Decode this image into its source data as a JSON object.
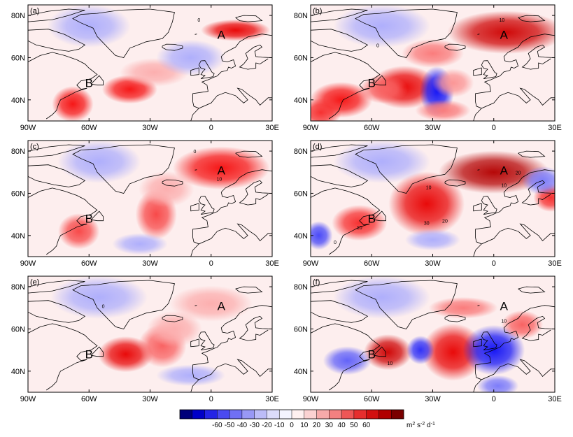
{
  "chart_data": [
    {
      "panel": "(a)",
      "type": "heatmap",
      "xticks": [
        "90W",
        "60W",
        "30W",
        "0",
        "30E"
      ],
      "yticks": [
        "80N",
        "60N",
        "40N"
      ],
      "lon_range": [
        -90,
        30
      ],
      "lat_range": [
        30,
        85
      ],
      "regions": [
        {
          "label": "A",
          "lon": 5,
          "lat": 69
        },
        {
          "label": "B",
          "lon": -60,
          "lat": 46
        }
      ],
      "contour_labels": [
        {
          "text": "0",
          "lon": -6,
          "lat": 77
        }
      ],
      "anomalies": [
        {
          "lon": -68,
          "lat": 38,
          "value": 40,
          "rlon": 6,
          "rlat": 5
        },
        {
          "lon": -40,
          "lat": 45,
          "value": 40,
          "rlon": 8,
          "rlat": 4
        },
        {
          "lon": 12,
          "lat": 73,
          "value": 45,
          "rlon": 10,
          "rlat": 3
        },
        {
          "lon": -28,
          "lat": 53,
          "value": 10,
          "rlon": 10,
          "rlat": 4
        },
        {
          "lon": -60,
          "lat": 75,
          "value": -10,
          "rlon": 12,
          "rlat": 6
        },
        {
          "lon": -10,
          "lat": 60,
          "value": -10,
          "rlon": 10,
          "rlat": 5
        }
      ]
    },
    {
      "panel": "(b)",
      "type": "heatmap",
      "xticks": [
        "90W",
        "60W",
        "30W",
        "0",
        "30E"
      ],
      "yticks": [
        "80N",
        "60N",
        "40N"
      ],
      "lon_range": [
        -90,
        30
      ],
      "lat_range": [
        30,
        85
      ],
      "regions": [
        {
          "label": "A",
          "lon": 5,
          "lat": 69
        },
        {
          "label": "B",
          "lon": -60,
          "lat": 46
        }
      ],
      "contour_labels": [
        {
          "text": "10",
          "lon": 4,
          "lat": 77
        },
        {
          "text": "0",
          "lon": -57,
          "lat": 65
        }
      ],
      "anomalies": [
        {
          "lon": 6,
          "lat": 72,
          "value": 50,
          "rlon": 17,
          "rlat": 6
        },
        {
          "lon": -44,
          "lat": 46,
          "value": 45,
          "rlon": 10,
          "rlat": 6
        },
        {
          "lon": -28,
          "lat": 44,
          "value": -40,
          "rlon": 5,
          "rlat": 7
        },
        {
          "lon": -75,
          "lat": 40,
          "value": 40,
          "rlon": 9,
          "rlat": 5
        },
        {
          "lon": -85,
          "lat": 34,
          "value": 35,
          "rlon": 6,
          "rlat": 4
        },
        {
          "lon": -54,
          "lat": 45,
          "value": 25,
          "rlon": 7,
          "rlat": 4
        },
        {
          "lon": -20,
          "lat": 48,
          "value": 15,
          "rlon": 6,
          "rlat": 4
        },
        {
          "lon": -25,
          "lat": 35,
          "value": 20,
          "rlon": 8,
          "rlat": 3
        },
        {
          "lon": -30,
          "lat": 62,
          "value": 20,
          "rlon": 9,
          "rlat": 4
        },
        {
          "lon": -55,
          "lat": 75,
          "value": -10,
          "rlon": 14,
          "rlat": 6
        }
      ]
    },
    {
      "panel": "(c)",
      "type": "heatmap",
      "xticks": [
        "90W",
        "60W",
        "30W",
        "0",
        "30E"
      ],
      "yticks": [
        "80N",
        "60N",
        "40N"
      ],
      "lon_range": [
        -90,
        30
      ],
      "lat_range": [
        30,
        85
      ],
      "regions": [
        {
          "label": "A",
          "lon": 5,
          "lat": 69
        },
        {
          "label": "B",
          "lon": -60,
          "lat": 46
        }
      ],
      "contour_labels": [
        {
          "text": "0",
          "lon": -8,
          "lat": 79
        },
        {
          "text": "10",
          "lon": 4,
          "lat": 66
        }
      ],
      "anomalies": [
        {
          "lon": 5,
          "lat": 72,
          "value": 40,
          "rlon": 14,
          "rlat": 6
        },
        {
          "lon": -27,
          "lat": 50,
          "value": 30,
          "rlon": 6,
          "rlat": 7
        },
        {
          "lon": -65,
          "lat": 42,
          "value": 30,
          "rlon": 6,
          "rlat": 5
        },
        {
          "lon": -22,
          "lat": 62,
          "value": 10,
          "rlon": 8,
          "rlat": 5
        },
        {
          "lon": -55,
          "lat": 75,
          "value": -10,
          "rlon": 12,
          "rlat": 6
        },
        {
          "lon": -35,
          "lat": 36,
          "value": -10,
          "rlon": 8,
          "rlat": 3
        }
      ]
    },
    {
      "panel": "(d)",
      "type": "heatmap",
      "xticks": [
        "90W",
        "60W",
        "30W",
        "0",
        "30E"
      ],
      "yticks": [
        "80N",
        "60N",
        "40N"
      ],
      "lon_range": [
        -90,
        30
      ],
      "lat_range": [
        30,
        85
      ],
      "regions": [
        {
          "label": "A",
          "lon": 5,
          "lat": 69
        },
        {
          "label": "B",
          "lon": -60,
          "lat": 46
        }
      ],
      "contour_labels": [
        {
          "text": "10",
          "lon": -32,
          "lat": 62
        },
        {
          "text": "30",
          "lon": -33,
          "lat": 45
        },
        {
          "text": "20",
          "lon": -24,
          "lat": 46
        },
        {
          "text": "10",
          "lon": -66,
          "lat": 43
        },
        {
          "text": "0",
          "lon": -78,
          "lat": 36
        },
        {
          "text": "10",
          "lon": 5,
          "lat": 63
        },
        {
          "text": "20",
          "lon": 12,
          "lat": 69
        }
      ],
      "anomalies": [
        {
          "lon": 0,
          "lat": 70,
          "value": 55,
          "rlon": 16,
          "rlat": 6
        },
        {
          "lon": -33,
          "lat": 55,
          "value": 45,
          "rlon": 11,
          "rlat": 9
        },
        {
          "lon": -66,
          "lat": 46,
          "value": 35,
          "rlon": 8,
          "rlat": 5
        },
        {
          "lon": 28,
          "lat": 58,
          "value": 35,
          "rlon": 5,
          "rlat": 4
        },
        {
          "lon": -86,
          "lat": 40,
          "value": -30,
          "rlon": 4,
          "rlat": 4
        },
        {
          "lon": 24,
          "lat": 66,
          "value": -20,
          "rlon": 6,
          "rlat": 4
        },
        {
          "lon": -30,
          "lat": 38,
          "value": -10,
          "rlon": 8,
          "rlat": 3
        },
        {
          "lon": -55,
          "lat": 75,
          "value": -10,
          "rlon": 14,
          "rlat": 6
        }
      ]
    },
    {
      "panel": "(e)",
      "type": "heatmap",
      "xticks": [
        "90W",
        "60W",
        "30W",
        "0",
        "30E"
      ],
      "yticks": [
        "80N",
        "60N",
        "40N"
      ],
      "lon_range": [
        -90,
        30
      ],
      "lat_range": [
        30,
        85
      ],
      "regions": [
        {
          "label": "A",
          "lon": 5,
          "lat": 69
        },
        {
          "label": "B",
          "lon": -60,
          "lat": 46
        }
      ],
      "contour_labels": [
        {
          "text": "0",
          "lon": -53,
          "lat": 70
        }
      ],
      "anomalies": [
        {
          "lon": -42,
          "lat": 48,
          "value": 45,
          "rlon": 8,
          "rlat": 5
        },
        {
          "lon": -24,
          "lat": 52,
          "value": 25,
          "rlon": 7,
          "rlat": 6
        },
        {
          "lon": 0,
          "lat": 72,
          "value": 10,
          "rlon": 12,
          "rlat": 5
        },
        {
          "lon": -18,
          "lat": 60,
          "value": 10,
          "rlon": 8,
          "rlat": 5
        },
        {
          "lon": -55,
          "lat": 75,
          "value": -10,
          "rlon": 14,
          "rlat": 6
        },
        {
          "lon": -10,
          "lat": 38,
          "value": -10,
          "rlon": 10,
          "rlat": 3
        }
      ]
    },
    {
      "panel": "(f)",
      "type": "heatmap",
      "xticks": [
        "90W",
        "60W",
        "30W",
        "0",
        "30E"
      ],
      "yticks": [
        "80N",
        "60N",
        "40N"
      ],
      "lon_range": [
        -90,
        30
      ],
      "lat_range": [
        30,
        85
      ],
      "regions": [
        {
          "label": "A",
          "lon": 5,
          "lat": 69
        },
        {
          "label": "B",
          "lon": -60,
          "lat": 46
        }
      ],
      "contour_labels": [
        {
          "text": "10",
          "lon": 5,
          "lat": 63
        },
        {
          "text": "10",
          "lon": -51,
          "lat": 43
        }
      ],
      "anomalies": [
        {
          "lon": -52,
          "lat": 49,
          "value": 50,
          "rlon": 7,
          "rlat": 5
        },
        {
          "lon": -20,
          "lat": 49,
          "value": 45,
          "rlon": 9,
          "rlat": 8
        },
        {
          "lon": -36,
          "lat": 50,
          "value": -35,
          "rlon": 4,
          "rlat": 4
        },
        {
          "lon": 0,
          "lat": 50,
          "value": -40,
          "rlon": 9,
          "rlat": 7
        },
        {
          "lon": -72,
          "lat": 45,
          "value": -25,
          "rlon": 7,
          "rlat": 4
        },
        {
          "lon": -15,
          "lat": 70,
          "value": 20,
          "rlon": 10,
          "rlat": 3
        },
        {
          "lon": 14,
          "lat": 62,
          "value": 25,
          "rlon": 6,
          "rlat": 4
        },
        {
          "lon": 2,
          "lat": 33,
          "value": -20,
          "rlon": 6,
          "rlat": 3
        },
        {
          "lon": -55,
          "lat": 75,
          "value": -10,
          "rlon": 14,
          "rlat": 6
        }
      ]
    }
  ],
  "colorbar": {
    "ticks": [
      "-60",
      "-50",
      "-40",
      "-30",
      "-20",
      "-10",
      "0",
      "10",
      "20",
      "30",
      "40",
      "50",
      "60"
    ],
    "unit_base": "m",
    "unit_exp1": "2",
    "unit_mid": " s",
    "unit_exp2": "-2",
    "unit_tail": " d",
    "unit_exp3": "-1",
    "colors": [
      "#00007a",
      "#0000c8",
      "#2424e6",
      "#4a4af0",
      "#7070f4",
      "#9898f6",
      "#bcbcf8",
      "#dcdcfa",
      "#f4f4ff",
      "#fff0f0",
      "#fbd2d2",
      "#f7aaaa",
      "#f38080",
      "#ee5656",
      "#e62e2e",
      "#d21010",
      "#b00000",
      "#7a0000"
    ]
  }
}
